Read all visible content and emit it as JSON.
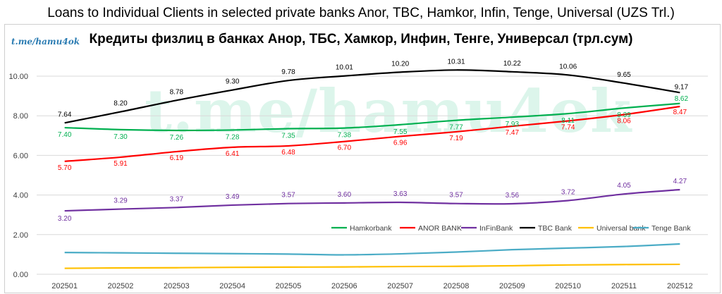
{
  "title": "Loans to Individual Clients in selected private banks Anor, TBC, Hamkor, Infin, Tenge, Universal (UZS Trl.)",
  "subtitle": "Кредиты физлиц в банках Анор, ТБС, Хамкор, Инфин, Тенге, Универсал (трл.сум)",
  "watermark_small": "t.me/hamu4ok",
  "watermark_big": "t.me/hamu4ok",
  "chart_data": {
    "type": "line",
    "title": "Loans to Individual Clients in selected private banks Anor, TBC, Hamkor, Infin, Tenge, Universal (UZS Trl.)",
    "subtitle": "Кредиты физлиц в банках Анор, ТБС, Хамкор, Инфин, Тенге, Универсал (трл.сум)",
    "categories": [
      "202501",
      "202502",
      "202503",
      "202504",
      "202505",
      "202506",
      "202507",
      "202508",
      "202509",
      "202510",
      "202511",
      "202512"
    ],
    "ylim": [
      0,
      10
    ],
    "yticks": [
      "0.00",
      "2.00",
      "4.00",
      "6.00",
      "8.00",
      "10.00"
    ],
    "grid": true,
    "legend_position": "bottom-right",
    "series": [
      {
        "name": "Hamkorbank",
        "color": "#00b050",
        "labels": true,
        "values": [
          7.4,
          7.3,
          7.26,
          7.28,
          7.35,
          7.38,
          7.55,
          7.77,
          7.93,
          8.11,
          8.39,
          8.62
        ]
      },
      {
        "name": "ANOR BANK",
        "color": "#ff0000",
        "labels": true,
        "values": [
          5.7,
          5.91,
          6.19,
          6.41,
          6.48,
          6.7,
          6.96,
          7.19,
          7.47,
          7.74,
          8.06,
          8.47
        ]
      },
      {
        "name": "InFinBank",
        "color": "#7030a0",
        "labels": true,
        "values": [
          3.2,
          3.29,
          3.37,
          3.49,
          3.57,
          3.6,
          3.63,
          3.57,
          3.56,
          3.72,
          4.05,
          4.27
        ]
      },
      {
        "name": "TBC Bank",
        "color": "#000000",
        "labels": true,
        "values": [
          7.64,
          8.2,
          8.78,
          9.3,
          9.78,
          10.01,
          10.2,
          10.31,
          10.22,
          10.06,
          9.65,
          9.17
        ]
      },
      {
        "name": "Universal bank",
        "color": "#ffc000",
        "labels": false,
        "values": [
          0.3,
          0.32,
          0.33,
          0.35,
          0.36,
          0.37,
          0.39,
          0.4,
          0.43,
          0.47,
          0.49,
          0.5
        ]
      },
      {
        "name": "Tenge Bank",
        "color": "#4bacc6",
        "labels": false,
        "values": [
          1.1,
          1.08,
          1.06,
          1.04,
          1.02,
          0.98,
          1.03,
          1.12,
          1.24,
          1.32,
          1.4,
          1.53
        ]
      }
    ]
  }
}
